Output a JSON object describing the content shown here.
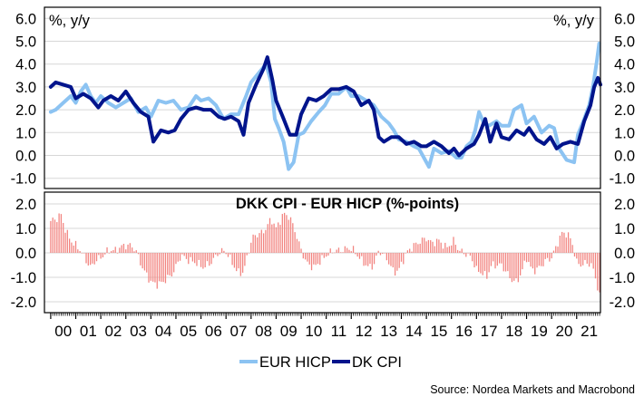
{
  "chart_data": [
    {
      "type": "line",
      "panel": "top",
      "unit_label_left": "%, y/y",
      "unit_label_right": "%, y/y",
      "x_ticks": [
        "00",
        "01",
        "02",
        "03",
        "04",
        "05",
        "06",
        "07",
        "08",
        "09",
        "10",
        "11",
        "12",
        "13",
        "14",
        "15",
        "16",
        "17",
        "18",
        "19",
        "20",
        "21"
      ],
      "y_ticks": [
        "6.0",
        "5.0",
        "4.0",
        "3.0",
        "2.0",
        "1.0",
        "0.0",
        "-1.0"
      ],
      "ylim": [
        -1.3,
        6.3
      ],
      "xlim": [
        1999.75,
        2021.95
      ],
      "grid": "horizontal",
      "legend_position": "bottom",
      "series": [
        {
          "name": "EUR HICP",
          "color": "#8cc3f2",
          "points": [
            [
              2000.0,
              1.9
            ],
            [
              2000.2,
              2.0
            ],
            [
              2000.5,
              2.3
            ],
            [
              2000.8,
              2.6
            ],
            [
              2001.0,
              2.3
            ],
            [
              2001.2,
              2.8
            ],
            [
              2001.4,
              3.1
            ],
            [
              2001.6,
              2.6
            ],
            [
              2001.8,
              2.3
            ],
            [
              2002.0,
              2.6
            ],
            [
              2002.3,
              2.3
            ],
            [
              2002.6,
              2.1
            ],
            [
              2002.9,
              2.3
            ],
            [
              2003.2,
              2.5
            ],
            [
              2003.5,
              1.9
            ],
            [
              2003.8,
              2.1
            ],
            [
              2004.0,
              1.7
            ],
            [
              2004.3,
              2.4
            ],
            [
              2004.6,
              2.3
            ],
            [
              2004.9,
              2.4
            ],
            [
              2005.2,
              2.0
            ],
            [
              2005.5,
              2.1
            ],
            [
              2005.8,
              2.6
            ],
            [
              2006.0,
              2.4
            ],
            [
              2006.3,
              2.5
            ],
            [
              2006.6,
              2.2
            ],
            [
              2006.9,
              1.6
            ],
            [
              2007.2,
              1.8
            ],
            [
              2007.5,
              1.8
            ],
            [
              2007.8,
              2.6
            ],
            [
              2008.0,
              3.2
            ],
            [
              2008.3,
              3.6
            ],
            [
              2008.6,
              4.0
            ],
            [
              2008.8,
              3.2
            ],
            [
              2008.95,
              1.6
            ],
            [
              2009.1,
              1.2
            ],
            [
              2009.3,
              0.6
            ],
            [
              2009.5,
              -0.6
            ],
            [
              2009.7,
              -0.3
            ],
            [
              2009.9,
              0.9
            ],
            [
              2010.1,
              1.0
            ],
            [
              2010.4,
              1.5
            ],
            [
              2010.7,
              1.9
            ],
            [
              2010.95,
              2.2
            ],
            [
              2011.2,
              2.7
            ],
            [
              2011.5,
              2.7
            ],
            [
              2011.8,
              3.0
            ],
            [
              2012.0,
              2.6
            ],
            [
              2012.3,
              2.6
            ],
            [
              2012.6,
              2.4
            ],
            [
              2012.9,
              2.2
            ],
            [
              2013.2,
              1.7
            ],
            [
              2013.5,
              1.4
            ],
            [
              2013.7,
              1.1
            ],
            [
              2013.9,
              0.7
            ],
            [
              2014.2,
              0.6
            ],
            [
              2014.5,
              0.4
            ],
            [
              2014.7,
              0.3
            ],
            [
              2014.95,
              -0.2
            ],
            [
              2015.1,
              -0.5
            ],
            [
              2015.3,
              0.3
            ],
            [
              2015.6,
              0.1
            ],
            [
              2015.9,
              0.2
            ],
            [
              2016.2,
              -0.1
            ],
            [
              2016.4,
              -0.1
            ],
            [
              2016.6,
              0.4
            ],
            [
              2016.8,
              0.6
            ],
            [
              2016.95,
              1.1
            ],
            [
              2017.1,
              1.9
            ],
            [
              2017.3,
              1.4
            ],
            [
              2017.5,
              1.3
            ],
            [
              2017.8,
              1.5
            ],
            [
              2018.0,
              1.3
            ],
            [
              2018.3,
              1.3
            ],
            [
              2018.5,
              2.0
            ],
            [
              2018.8,
              2.2
            ],
            [
              2019.0,
              1.4
            ],
            [
              2019.3,
              1.7
            ],
            [
              2019.6,
              1.0
            ],
            [
              2019.9,
              1.3
            ],
            [
              2020.1,
              1.2
            ],
            [
              2020.3,
              0.3
            ],
            [
              2020.6,
              -0.2
            ],
            [
              2020.9,
              -0.3
            ],
            [
              2021.05,
              0.9
            ],
            [
              2021.3,
              1.6
            ],
            [
              2021.5,
              2.2
            ],
            [
              2021.65,
              3.0
            ],
            [
              2021.8,
              4.1
            ],
            [
              2021.9,
              4.9
            ]
          ]
        },
        {
          "name": "DK CPI",
          "color": "#00148c",
          "points": [
            [
              2000.0,
              3.0
            ],
            [
              2000.2,
              3.2
            ],
            [
              2000.5,
              3.1
            ],
            [
              2000.8,
              3.0
            ],
            [
              2001.0,
              2.5
            ],
            [
              2001.3,
              2.7
            ],
            [
              2001.6,
              2.5
            ],
            [
              2001.9,
              2.1
            ],
            [
              2002.1,
              2.4
            ],
            [
              2002.4,
              2.6
            ],
            [
              2002.7,
              2.4
            ],
            [
              2003.0,
              2.8
            ],
            [
              2003.3,
              2.3
            ],
            [
              2003.6,
              1.9
            ],
            [
              2003.9,
              1.7
            ],
            [
              2004.1,
              0.6
            ],
            [
              2004.4,
              1.1
            ],
            [
              2004.7,
              1.0
            ],
            [
              2004.95,
              1.1
            ],
            [
              2005.2,
              1.6
            ],
            [
              2005.5,
              2.0
            ],
            [
              2005.8,
              2.1
            ],
            [
              2006.1,
              2.0
            ],
            [
              2006.4,
              2.0
            ],
            [
              2006.7,
              1.7
            ],
            [
              2006.95,
              1.6
            ],
            [
              2007.2,
              1.7
            ],
            [
              2007.5,
              1.5
            ],
            [
              2007.7,
              0.9
            ],
            [
              2007.9,
              2.3
            ],
            [
              2008.2,
              3.1
            ],
            [
              2008.5,
              3.8
            ],
            [
              2008.65,
              4.3
            ],
            [
              2008.85,
              3.3
            ],
            [
              2009.0,
              2.4
            ],
            [
              2009.3,
              1.6
            ],
            [
              2009.55,
              0.9
            ],
            [
              2009.8,
              0.9
            ],
            [
              2010.0,
              1.8
            ],
            [
              2010.3,
              2.5
            ],
            [
              2010.6,
              2.4
            ],
            [
              2010.9,
              2.6
            ],
            [
              2011.2,
              2.9
            ],
            [
              2011.5,
              2.9
            ],
            [
              2011.8,
              3.0
            ],
            [
              2012.1,
              2.8
            ],
            [
              2012.4,
              2.2
            ],
            [
              2012.7,
              2.4
            ],
            [
              2012.9,
              2.0
            ],
            [
              2013.1,
              0.8
            ],
            [
              2013.3,
              0.6
            ],
            [
              2013.6,
              0.8
            ],
            [
              2013.9,
              0.8
            ],
            [
              2014.2,
              0.5
            ],
            [
              2014.5,
              0.6
            ],
            [
              2014.8,
              0.4
            ],
            [
              2015.0,
              0.4
            ],
            [
              2015.3,
              0.6
            ],
            [
              2015.6,
              0.4
            ],
            [
              2015.9,
              0.1
            ],
            [
              2016.1,
              0.3
            ],
            [
              2016.3,
              0.0
            ],
            [
              2016.6,
              0.3
            ],
            [
              2016.9,
              0.5
            ],
            [
              2017.1,
              0.9
            ],
            [
              2017.35,
              1.6
            ],
            [
              2017.55,
              0.6
            ],
            [
              2017.8,
              1.4
            ],
            [
              2018.0,
              0.8
            ],
            [
              2018.3,
              0.7
            ],
            [
              2018.6,
              1.1
            ],
            [
              2018.9,
              0.9
            ],
            [
              2019.1,
              1.2
            ],
            [
              2019.4,
              0.7
            ],
            [
              2019.7,
              0.5
            ],
            [
              2019.95,
              0.8
            ],
            [
              2020.2,
              0.3
            ],
            [
              2020.45,
              0.5
            ],
            [
              2020.75,
              0.6
            ],
            [
              2021.05,
              0.5
            ],
            [
              2021.3,
              1.5
            ],
            [
              2021.55,
              2.2
            ],
            [
              2021.7,
              3.0
            ],
            [
              2021.85,
              3.4
            ],
            [
              2021.95,
              3.1
            ]
          ]
        }
      ]
    },
    {
      "type": "bar",
      "panel": "bottom",
      "title": "DKK CPI - EUR HICP (%-points)",
      "y_ticks": [
        "2.0",
        "1.0",
        "0.0",
        "-1.0",
        "-2.0"
      ],
      "ylim": [
        -2.4,
        2.4
      ],
      "xlim": [
        1999.75,
        2021.95
      ],
      "bar_color": "#f2837f",
      "grid": "horizontal",
      "anchors": [
        [
          2000.0,
          1.3
        ],
        [
          2000.25,
          1.4
        ],
        [
          2000.4,
          1.6
        ],
        [
          2000.6,
          0.9
        ],
        [
          2000.8,
          0.5
        ],
        [
          2001.0,
          0.3
        ],
        [
          2001.2,
          0.1
        ],
        [
          2001.4,
          -0.3
        ],
        [
          2001.6,
          -0.6
        ],
        [
          2001.8,
          -0.3
        ],
        [
          2002.0,
          -0.2
        ],
        [
          2002.3,
          0.1
        ],
        [
          2002.6,
          0.1
        ],
        [
          2002.9,
          0.3
        ],
        [
          2003.2,
          0.3
        ],
        [
          2003.4,
          0.1
        ],
        [
          2003.7,
          -0.7
        ],
        [
          2003.9,
          -1.0
        ],
        [
          2004.0,
          -1.2
        ],
        [
          2004.3,
          -1.3
        ],
        [
          2004.6,
          -1.1
        ],
        [
          2004.9,
          -0.8
        ],
        [
          2005.2,
          -0.1
        ],
        [
          2005.5,
          -0.3
        ],
        [
          2005.8,
          -0.4
        ],
        [
          2006.1,
          -0.6
        ],
        [
          2006.4,
          -0.4
        ],
        [
          2006.7,
          0.0
        ],
        [
          2006.95,
          0.1
        ],
        [
          2007.2,
          -0.3
        ],
        [
          2007.45,
          -0.8
        ],
        [
          2007.7,
          -0.8
        ],
        [
          2007.9,
          0.1
        ],
        [
          2008.1,
          0.7
        ],
        [
          2008.4,
          0.8
        ],
        [
          2008.6,
          1.0
        ],
        [
          2008.8,
          1.4
        ],
        [
          2009.0,
          1.0
        ],
        [
          2009.15,
          1.3
        ],
        [
          2009.3,
          1.6
        ],
        [
          2009.5,
          1.5
        ],
        [
          2009.7,
          1.1
        ],
        [
          2009.9,
          0.4
        ],
        [
          2010.2,
          -0.4
        ],
        [
          2010.5,
          -0.6
        ],
        [
          2010.8,
          -0.3
        ],
        [
          2011.0,
          -0.1
        ],
        [
          2011.3,
          0.1
        ],
        [
          2011.6,
          0.1
        ],
        [
          2011.9,
          0.2
        ],
        [
          2012.1,
          0.1
        ],
        [
          2012.4,
          -0.3
        ],
        [
          2012.7,
          -0.6
        ],
        [
          2012.9,
          -0.5
        ],
        [
          2013.1,
          0.1
        ],
        [
          2013.4,
          -0.2
        ],
        [
          2013.7,
          -0.8
        ],
        [
          2013.9,
          -0.7
        ],
        [
          2014.2,
          0.0
        ],
        [
          2014.5,
          0.3
        ],
        [
          2014.8,
          0.5
        ],
        [
          2015.0,
          0.6
        ],
        [
          2015.2,
          0.4
        ],
        [
          2015.5,
          0.5
        ],
        [
          2015.8,
          0.2
        ],
        [
          2016.1,
          0.5
        ],
        [
          2016.3,
          0.1
        ],
        [
          2016.5,
          0.0
        ],
        [
          2016.8,
          -0.2
        ],
        [
          2017.0,
          -0.7
        ],
        [
          2017.2,
          -0.8
        ],
        [
          2017.4,
          -1.0
        ],
        [
          2017.6,
          -0.5
        ],
        [
          2017.8,
          -0.5
        ],
        [
          2018.0,
          -0.5
        ],
        [
          2018.2,
          -0.8
        ],
        [
          2018.4,
          -1.1
        ],
        [
          2018.6,
          -1.2
        ],
        [
          2018.8,
          -0.8
        ],
        [
          2019.0,
          -0.2
        ],
        [
          2019.2,
          -0.7
        ],
        [
          2019.4,
          -0.7
        ],
        [
          2019.6,
          -0.5
        ],
        [
          2019.8,
          -0.3
        ],
        [
          2020.0,
          -0.2
        ],
        [
          2020.2,
          0.3
        ],
        [
          2020.4,
          0.8
        ],
        [
          2020.6,
          0.8
        ],
        [
          2020.8,
          0.5
        ],
        [
          2021.0,
          -0.4
        ],
        [
          2021.2,
          -0.5
        ],
        [
          2021.4,
          -0.4
        ],
        [
          2021.6,
          -0.5
        ],
        [
          2021.75,
          -1.0
        ],
        [
          2021.85,
          -1.5
        ],
        [
          2021.95,
          -1.9
        ]
      ]
    }
  ],
  "legend": [
    {
      "label": "EUR HICP",
      "color": "#8cc3f2"
    },
    {
      "label": "DK CPI",
      "color": "#00148c"
    }
  ],
  "source": "Source: Nordea Markets and Macrobond"
}
